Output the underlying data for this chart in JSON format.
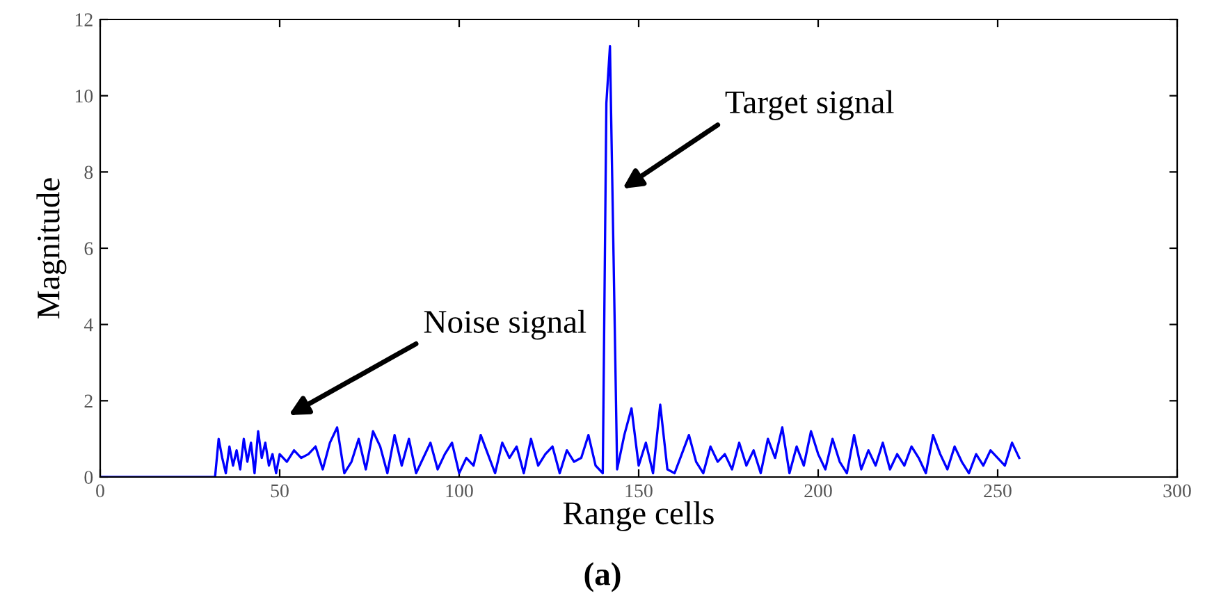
{
  "chart_data": {
    "type": "line",
    "xlabel": "Range cells",
    "ylabel": "Magnitude",
    "xlim": [
      0,
      300
    ],
    "ylim": [
      0,
      12
    ],
    "xticks": [
      0,
      50,
      100,
      150,
      200,
      250,
      300
    ],
    "yticks": [
      0,
      2,
      4,
      6,
      8,
      10,
      12
    ],
    "grid": false,
    "marker": "none",
    "line_style": "solid",
    "series": [
      {
        "color": "#0000ff",
        "x": [
          0,
          32,
          33,
          34,
          35,
          36,
          37,
          38,
          39,
          40,
          41,
          42,
          43,
          44,
          45,
          46,
          47,
          48,
          49,
          50,
          52,
          54,
          56,
          58,
          60,
          62,
          64,
          66,
          68,
          70,
          72,
          74,
          76,
          78,
          80,
          82,
          84,
          86,
          88,
          90,
          92,
          94,
          96,
          98,
          100,
          102,
          104,
          106,
          108,
          110,
          112,
          114,
          116,
          118,
          120,
          122,
          124,
          126,
          128,
          130,
          132,
          134,
          136,
          138,
          140,
          141,
          142,
          143,
          144,
          146,
          148,
          150,
          152,
          154,
          156,
          158,
          160,
          162,
          164,
          166,
          168,
          170,
          172,
          174,
          176,
          178,
          180,
          182,
          184,
          186,
          188,
          190,
          192,
          194,
          196,
          198,
          200,
          202,
          204,
          206,
          208,
          210,
          212,
          214,
          216,
          218,
          220,
          222,
          224,
          226,
          228,
          230,
          232,
          234,
          236,
          238,
          240,
          242,
          244,
          246,
          248,
          250,
          252,
          254,
          256
        ],
        "values": [
          0,
          0,
          1.0,
          0.5,
          0.1,
          0.8,
          0.3,
          0.7,
          0.2,
          1.0,
          0.4,
          0.9,
          0.1,
          1.2,
          0.5,
          0.9,
          0.3,
          0.6,
          0.1,
          0.6,
          0.4,
          0.7,
          0.5,
          0.6,
          0.8,
          0.2,
          0.9,
          1.3,
          0.1,
          0.4,
          1.0,
          0.2,
          1.2,
          0.8,
          0.1,
          1.1,
          0.3,
          1.0,
          0.1,
          0.5,
          0.9,
          0.2,
          0.6,
          0.9,
          0.1,
          0.5,
          0.3,
          1.1,
          0.6,
          0.1,
          0.9,
          0.5,
          0.8,
          0.1,
          1.0,
          0.3,
          0.6,
          0.8,
          0.1,
          0.7,
          0.4,
          0.5,
          1.1,
          0.3,
          0.1,
          9.8,
          11.3,
          5.8,
          0.2,
          1.1,
          1.8,
          0.3,
          0.9,
          0.1,
          1.9,
          0.2,
          0.1,
          0.6,
          1.1,
          0.4,
          0.1,
          0.8,
          0.4,
          0.6,
          0.2,
          0.9,
          0.3,
          0.7,
          0.1,
          1.0,
          0.5,
          1.3,
          0.1,
          0.8,
          0.3,
          1.2,
          0.6,
          0.2,
          1.0,
          0.4,
          0.1,
          1.1,
          0.2,
          0.7,
          0.3,
          0.9,
          0.2,
          0.6,
          0.3,
          0.8,
          0.5,
          0.1,
          1.1,
          0.6,
          0.2,
          0.8,
          0.4,
          0.1,
          0.6,
          0.3,
          0.7,
          0.5,
          0.3,
          0.9,
          0.5
        ]
      }
    ],
    "annotations": [
      "Target signal",
      "Noise signal",
      "(a)"
    ]
  }
}
